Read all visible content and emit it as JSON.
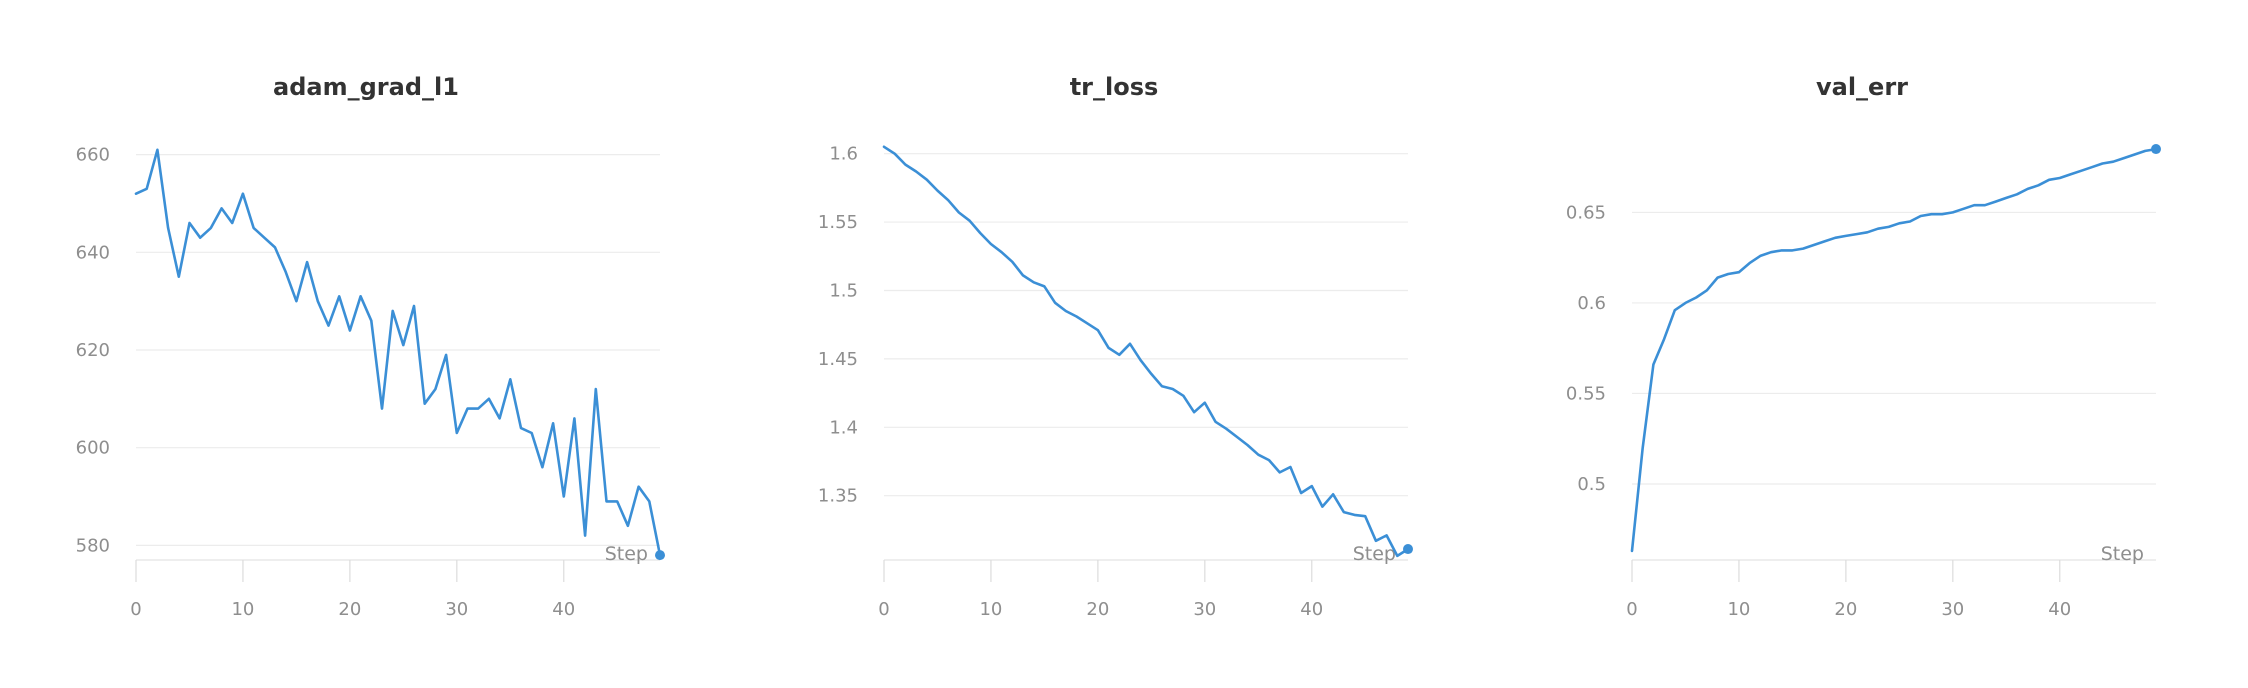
{
  "accent_color": "#3b8fd6",
  "chart_data": [
    {
      "type": "line",
      "title": "adam_grad_l1",
      "xlabel": "Step",
      "ylabel": "",
      "xlim": [
        0,
        49
      ],
      "ylim": [
        577,
        663
      ],
      "x_ticks": [
        0,
        10,
        20,
        30,
        40
      ],
      "y_ticks": [
        580,
        600,
        620,
        640,
        660
      ],
      "y_tick_labels": [
        "580",
        "600",
        "620",
        "640",
        "660"
      ],
      "grid": true,
      "series": [
        {
          "color": "#3b8fd6",
          "x": [
            0,
            1,
            2,
            3,
            4,
            5,
            6,
            7,
            8,
            9,
            10,
            11,
            12,
            13,
            14,
            15,
            16,
            17,
            18,
            19,
            20,
            21,
            22,
            23,
            24,
            25,
            26,
            27,
            28,
            29,
            30,
            31,
            32,
            33,
            34,
            35,
            36,
            37,
            38,
            39,
            40,
            41,
            42,
            43,
            44,
            45,
            46,
            47,
            48,
            49
          ],
          "values": [
            652,
            653,
            661,
            645,
            635,
            646,
            643,
            645,
            649,
            646,
            652,
            645,
            643,
            641,
            636,
            630,
            638,
            630,
            625,
            631,
            624,
            631,
            626,
            608,
            628,
            621,
            629,
            609,
            612,
            619,
            603,
            608,
            608,
            610,
            606,
            614,
            604,
            603,
            596,
            605,
            590,
            606,
            582,
            612,
            589,
            589,
            584,
            592,
            589,
            578
          ]
        }
      ]
    },
    {
      "type": "line",
      "title": "tr_loss",
      "xlabel": "Step",
      "ylabel": "",
      "xlim": [
        0,
        49
      ],
      "ylim": [
        1.303,
        1.61
      ],
      "x_ticks": [
        0,
        10,
        20,
        30,
        40
      ],
      "y_ticks": [
        1.35,
        1.4,
        1.45,
        1.5,
        1.55,
        1.6
      ],
      "y_tick_labels": [
        "1.35",
        "1.4",
        "1.45",
        "1.5",
        "1.55",
        "1.6"
      ],
      "grid": true,
      "series": [
        {
          "color": "#3b8fd6",
          "x": [
            0,
            1,
            2,
            3,
            4,
            5,
            6,
            7,
            8,
            9,
            10,
            11,
            12,
            13,
            14,
            15,
            16,
            17,
            18,
            19,
            20,
            21,
            22,
            23,
            24,
            25,
            26,
            27,
            28,
            29,
            30,
            31,
            32,
            33,
            34,
            35,
            36,
            37,
            38,
            39,
            40,
            41,
            42,
            43,
            44,
            45,
            46,
            47,
            48,
            49
          ],
          "values": [
            1.605,
            1.6,
            1.592,
            1.587,
            1.581,
            1.573,
            1.566,
            1.557,
            1.551,
            1.542,
            1.534,
            1.528,
            1.521,
            1.511,
            1.506,
            1.503,
            1.491,
            1.485,
            1.481,
            1.476,
            1.471,
            1.458,
            1.453,
            1.461,
            1.449,
            1.439,
            1.43,
            1.428,
            1.423,
            1.411,
            1.418,
            1.404,
            1.399,
            1.393,
            1.387,
            1.38,
            1.376,
            1.367,
            1.371,
            1.352,
            1.357,
            1.342,
            1.351,
            1.338,
            1.336,
            1.335,
            1.317,
            1.321,
            1.306,
            1.311
          ]
        }
      ]
    },
    {
      "type": "line",
      "title": "val_err",
      "xlabel": "Step",
      "ylabel": "",
      "xlim": [
        0,
        49
      ],
      "ylim": [
        0.458,
        0.69
      ],
      "x_ticks": [
        0,
        10,
        20,
        30,
        40
      ],
      "y_ticks": [
        0.5,
        0.55,
        0.6,
        0.65
      ],
      "y_tick_labels": [
        "0.5",
        "0.55",
        "0.6",
        "0.65"
      ],
      "grid": true,
      "series": [
        {
          "color": "#3b8fd6",
          "x": [
            0,
            1,
            2,
            3,
            4,
            5,
            6,
            7,
            8,
            9,
            10,
            11,
            12,
            13,
            14,
            15,
            16,
            17,
            18,
            19,
            20,
            21,
            22,
            23,
            24,
            25,
            26,
            27,
            28,
            29,
            30,
            31,
            32,
            33,
            34,
            35,
            36,
            37,
            38,
            39,
            40,
            41,
            42,
            43,
            44,
            45,
            46,
            47,
            48,
            49
          ],
          "values": [
            0.463,
            0.52,
            0.566,
            0.58,
            0.596,
            0.6,
            0.603,
            0.607,
            0.614,
            0.616,
            0.617,
            0.622,
            0.626,
            0.628,
            0.629,
            0.629,
            0.63,
            0.632,
            0.634,
            0.636,
            0.637,
            0.638,
            0.639,
            0.641,
            0.642,
            0.644,
            0.645,
            0.648,
            0.649,
            0.649,
            0.65,
            0.652,
            0.654,
            0.654,
            0.656,
            0.658,
            0.66,
            0.663,
            0.665,
            0.668,
            0.669,
            0.671,
            0.673,
            0.675,
            0.677,
            0.678,
            0.68,
            0.682,
            0.684,
            0.685
          ]
        }
      ]
    }
  ]
}
